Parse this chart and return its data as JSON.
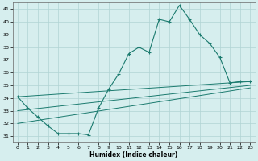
{
  "xlabel": "Humidex (Indice chaleur)",
  "bg_color": "#d6eeee",
  "grid_color": "#b0d4d4",
  "line_color": "#1a7a6e",
  "xlim": [
    -0.5,
    23.5
  ],
  "ylim": [
    30.5,
    41.5
  ],
  "yticks": [
    31,
    32,
    33,
    34,
    35,
    36,
    37,
    38,
    39,
    40,
    41
  ],
  "xticks": [
    0,
    1,
    2,
    3,
    4,
    5,
    6,
    7,
    8,
    9,
    10,
    11,
    12,
    13,
    14,
    15,
    16,
    17,
    18,
    19,
    20,
    21,
    22,
    23
  ],
  "main_line": {
    "x": [
      0,
      1,
      2,
      3,
      4,
      5,
      6,
      7,
      8,
      9,
      10,
      11,
      12,
      13,
      14,
      15,
      16,
      17,
      18,
      19,
      20,
      21,
      22,
      23
    ],
    "y": [
      34.1,
      33.2,
      32.5,
      31.8,
      31.2,
      31.2,
      31.2,
      31.1,
      33.2,
      34.7,
      35.9,
      37.5,
      38.0,
      37.6,
      40.2,
      40.0,
      41.3,
      40.2,
      39.0,
      38.3,
      37.2,
      35.2,
      35.3,
      35.3
    ]
  },
  "straight_lines": [
    {
      "x": [
        0,
        23
      ],
      "y": [
        34.1,
        35.3
      ]
    },
    {
      "x": [
        0,
        23
      ],
      "y": [
        33.0,
        35.0
      ]
    },
    {
      "x": [
        0,
        23
      ],
      "y": [
        32.0,
        34.8
      ]
    }
  ]
}
